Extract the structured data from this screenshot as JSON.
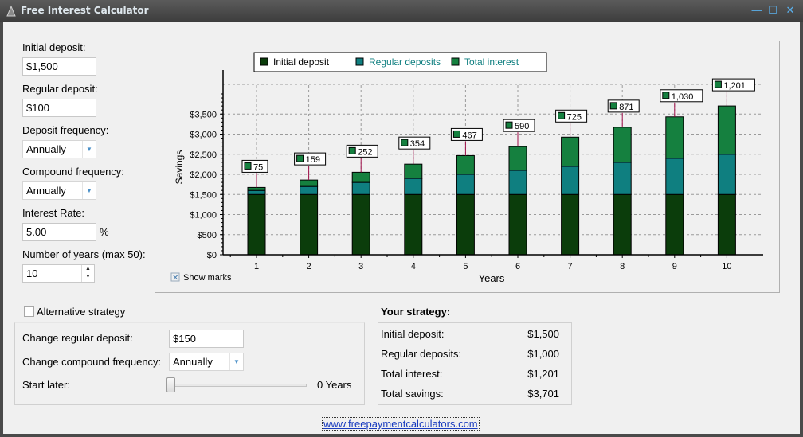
{
  "window": {
    "title": "Free Interest Calculator",
    "buttons": {
      "minimize": "—",
      "maximize": "☐",
      "close": "✕"
    }
  },
  "inputs": {
    "initial_deposit": {
      "label": "Initial deposit:",
      "value": "$1,500"
    },
    "regular_deposit": {
      "label": "Regular deposit:",
      "value": "$100"
    },
    "deposit_frequency": {
      "label": "Deposit frequency:",
      "value": "Annually"
    },
    "compound_frequency": {
      "label": "Compound frequency:",
      "value": "Annually"
    },
    "interest_rate": {
      "label": "Interest Rate:",
      "value": "5.00",
      "unit": "%"
    },
    "years": {
      "label": "Number of years (max 50):",
      "value": "10"
    }
  },
  "chart_controls": {
    "show_marks_label": "Show marks",
    "show_marks_checked": true
  },
  "chart_data": {
    "type": "bar",
    "stacked": true,
    "categories": [
      "1",
      "2",
      "3",
      "4",
      "5",
      "6",
      "7",
      "8",
      "9",
      "10"
    ],
    "xlabel": "Years",
    "ylabel": "Savings",
    "ylim": [
      0,
      4000
    ],
    "yticks": [
      "$0",
      "$500",
      "$1,000",
      "$1,500",
      "$2,000",
      "$2,500",
      "$3,000",
      "$3,500"
    ],
    "ytick_values": [
      0,
      500,
      1000,
      1500,
      2000,
      2500,
      3000,
      3500
    ],
    "legend_position": "top",
    "series": [
      {
        "name": "Initial deposit",
        "color": "#0b3d0b",
        "values": [
          1500,
          1500,
          1500,
          1500,
          1500,
          1500,
          1500,
          1500,
          1500,
          1500
        ]
      },
      {
        "name": "Regular deposits",
        "color": "#0f7f80",
        "values": [
          100,
          200,
          300,
          400,
          500,
          600,
          700,
          800,
          900,
          1000
        ]
      },
      {
        "name": "Total interest",
        "color": "#15803f",
        "values": [
          75,
          159,
          252,
          354,
          467,
          590,
          725,
          871,
          1030,
          1201
        ]
      }
    ],
    "mark_labels": [
      "75",
      "159",
      "252",
      "354",
      "467",
      "590",
      "725",
      "871",
      "1,030",
      "1,201"
    ],
    "grid": true
  },
  "alternative": {
    "checkbox_label": "Alternative strategy",
    "checked": false,
    "change_regular_deposit_label": "Change regular deposit:",
    "change_regular_deposit_value": "$150",
    "change_compound_label": "Change compound frequency:",
    "change_compound_value": "Annually",
    "start_later_label": "Start later:",
    "start_later_value": "0 Years",
    "start_later_level": 0
  },
  "strategy": {
    "title": "Your strategy:",
    "rows": [
      {
        "label": "Initial deposit:",
        "value": "$1,500"
      },
      {
        "label": "Regular deposits:",
        "value": "$1,000"
      },
      {
        "label": "Total interest:",
        "value": "$1,201"
      },
      {
        "label": "Total savings:",
        "value": "$3,701"
      }
    ]
  },
  "footer_link": "www.freepaymentcalculators.com"
}
